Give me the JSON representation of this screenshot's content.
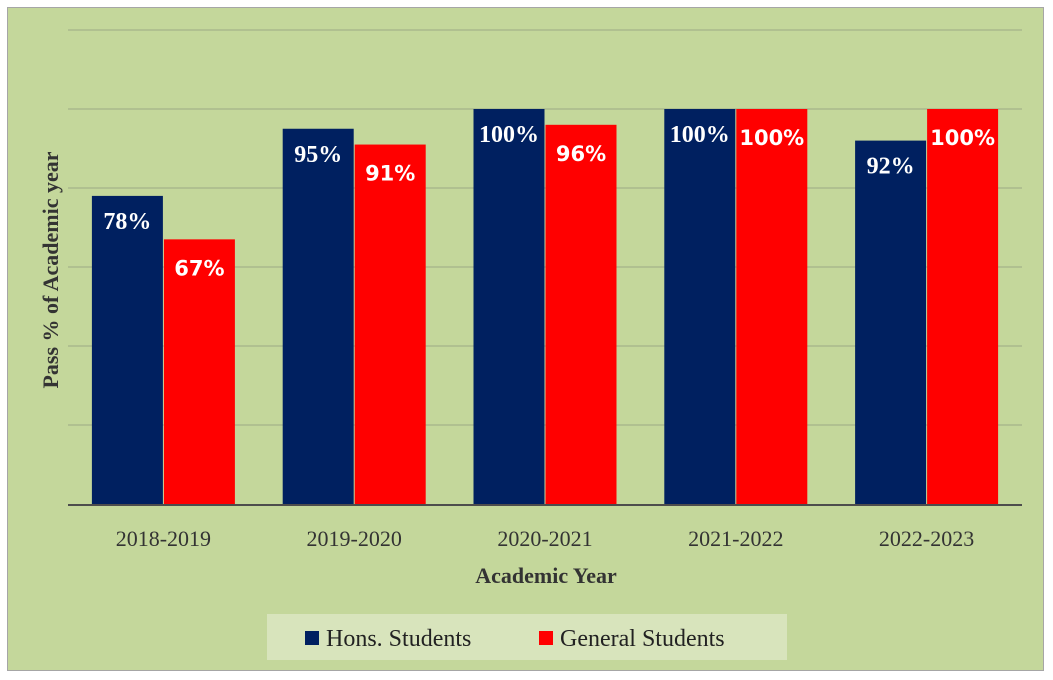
{
  "chart_data": {
    "type": "bar",
    "title": "",
    "xlabel": "Academic Year",
    "ylabel": "Pass % of Academic year",
    "categories": [
      "2018-2019",
      "2019-2020",
      "2020-2021",
      "2021-2022",
      "2022-2023"
    ],
    "series": [
      {
        "name": "Hons. Students",
        "color": "#002060",
        "values": [
          78,
          95,
          100,
          100,
          92
        ],
        "labels": [
          "78%",
          "95%",
          "100%",
          "100%",
          "92%"
        ]
      },
      {
        "name": "General Students",
        "color": "#ff0000",
        "values": [
          67,
          91,
          96,
          100,
          100
        ],
        "labels": [
          "67%",
          "91%",
          "96%",
          "100%",
          "100%"
        ]
      }
    ],
    "ylim": [
      0,
      120
    ],
    "grid": true,
    "legend_position": "bottom",
    "background_color": "#c4d79b"
  }
}
